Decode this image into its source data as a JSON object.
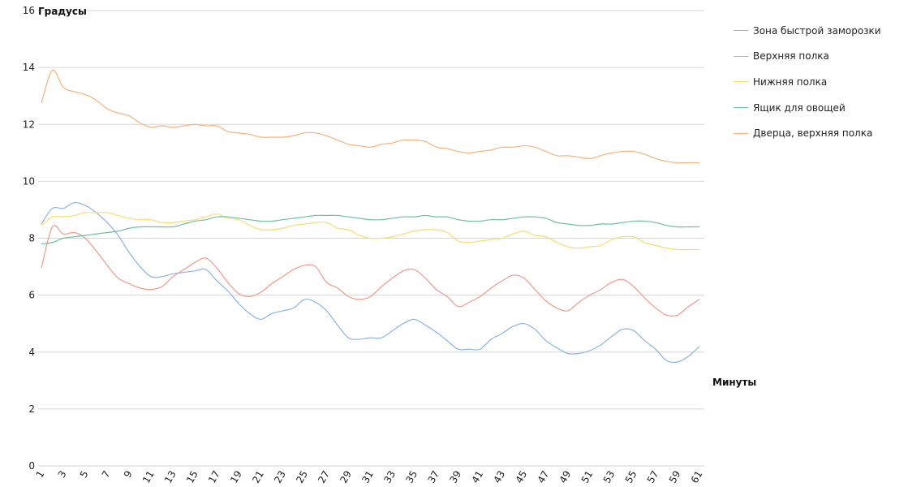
{
  "chart_data": {
    "type": "line",
    "ylabel": "Градусы",
    "xlabel": "Минуты",
    "ylim": [
      0,
      16
    ],
    "yticks": [
      0,
      2,
      4,
      6,
      8,
      10,
      12,
      14,
      16
    ],
    "x": [
      1,
      2,
      3,
      4,
      5,
      6,
      7,
      8,
      9,
      10,
      11,
      12,
      13,
      14,
      15,
      16,
      17,
      18,
      19,
      20,
      21,
      22,
      23,
      24,
      25,
      26,
      27,
      28,
      29,
      30,
      31,
      32,
      33,
      34,
      35,
      36,
      37,
      38,
      39,
      40,
      41,
      42,
      43,
      44,
      45,
      46,
      47,
      48,
      49,
      50,
      51,
      52,
      53,
      54,
      55,
      56,
      57,
      58,
      59,
      60,
      61
    ],
    "xtick_labels": [
      "1",
      "3",
      "5",
      "7",
      "9",
      "11",
      "13",
      "15",
      "17",
      "19",
      "21",
      "23",
      "25",
      "27",
      "29",
      "31",
      "33",
      "35",
      "37",
      "39",
      "41",
      "43",
      "45",
      "47",
      "49",
      "51",
      "53",
      "55",
      "57",
      "59",
      "61"
    ],
    "grid": true,
    "legend_position": "right",
    "series": [
      {
        "name": "Зона быстрой заморозки",
        "color": "#8ab4e8",
        "values": [
          8.5,
          9.05,
          9.05,
          9.25,
          9.15,
          8.9,
          8.55,
          8.1,
          7.5,
          7.0,
          6.65,
          6.65,
          6.75,
          6.8,
          6.85,
          6.9,
          6.5,
          6.15,
          5.7,
          5.35,
          5.15,
          5.35,
          5.45,
          5.55,
          5.85,
          5.75,
          5.45,
          4.95,
          4.5,
          4.45,
          4.5,
          4.5,
          4.75,
          5.0,
          5.15,
          4.95,
          4.7,
          4.4,
          4.1,
          4.1,
          4.1,
          4.45,
          4.65,
          4.9,
          5.0,
          4.8,
          4.4,
          4.15,
          3.95,
          3.95,
          4.05,
          4.25,
          4.55,
          4.8,
          4.75,
          4.4,
          4.1,
          3.7,
          3.65,
          3.85,
          4.2
        ]
      },
      {
        "name": "Верхняя полка",
        "color": "#f09a8a",
        "values": [
          6.95,
          8.4,
          8.15,
          8.2,
          8.0,
          7.55,
          7.05,
          6.6,
          6.4,
          6.25,
          6.2,
          6.3,
          6.65,
          6.9,
          7.15,
          7.3,
          6.95,
          6.45,
          6.05,
          5.95,
          6.1,
          6.4,
          6.65,
          6.9,
          7.05,
          7.0,
          6.45,
          6.25,
          5.95,
          5.85,
          5.95,
          6.3,
          6.6,
          6.85,
          6.9,
          6.6,
          6.2,
          5.95,
          5.6,
          5.75,
          5.95,
          6.25,
          6.5,
          6.7,
          6.6,
          6.2,
          5.8,
          5.55,
          5.45,
          5.75,
          6.0,
          6.2,
          6.45,
          6.55,
          6.3,
          5.9,
          5.55,
          5.3,
          5.3,
          5.6,
          5.85
        ]
      },
      {
        "name": "Нижняя полка",
        "color": "#f8dc70",
        "values": [
          8.45,
          8.75,
          8.75,
          8.8,
          8.9,
          8.9,
          8.9,
          8.8,
          8.7,
          8.65,
          8.65,
          8.55,
          8.55,
          8.6,
          8.65,
          8.75,
          8.85,
          8.7,
          8.65,
          8.45,
          8.3,
          8.3,
          8.35,
          8.45,
          8.5,
          8.55,
          8.55,
          8.35,
          8.3,
          8.1,
          8.0,
          8.0,
          8.05,
          8.15,
          8.25,
          8.3,
          8.3,
          8.2,
          7.9,
          7.85,
          7.9,
          7.95,
          8.0,
          8.15,
          8.25,
          8.1,
          8.05,
          7.85,
          7.7,
          7.65,
          7.7,
          7.75,
          7.95,
          8.05,
          8.05,
          7.85,
          7.75,
          7.65,
          7.6,
          7.6,
          7.6
        ]
      },
      {
        "name": "Ящик для овощей",
        "color": "#6fbf9e",
        "values": [
          7.8,
          7.85,
          8.0,
          8.05,
          8.1,
          8.15,
          8.2,
          8.25,
          8.35,
          8.4,
          8.4,
          8.4,
          8.4,
          8.5,
          8.6,
          8.65,
          8.75,
          8.75,
          8.7,
          8.65,
          8.6,
          8.6,
          8.65,
          8.7,
          8.75,
          8.8,
          8.8,
          8.8,
          8.75,
          8.7,
          8.65,
          8.65,
          8.7,
          8.75,
          8.75,
          8.8,
          8.75,
          8.75,
          8.65,
          8.6,
          8.6,
          8.65,
          8.65,
          8.7,
          8.75,
          8.75,
          8.7,
          8.55,
          8.5,
          8.45,
          8.45,
          8.5,
          8.5,
          8.55,
          8.6,
          8.6,
          8.55,
          8.45,
          8.4,
          8.4,
          8.4
        ]
      },
      {
        "name": "Дверца, верхняя полка",
        "color": "#f6b37a",
        "values": [
          12.75,
          13.9,
          13.3,
          13.15,
          13.05,
          12.85,
          12.55,
          12.4,
          12.3,
          12.05,
          11.9,
          11.95,
          11.9,
          11.95,
          12.0,
          11.95,
          11.95,
          11.75,
          11.7,
          11.65,
          11.55,
          11.55,
          11.55,
          11.6,
          11.7,
          11.7,
          11.6,
          11.45,
          11.3,
          11.25,
          11.2,
          11.3,
          11.35,
          11.45,
          11.45,
          11.4,
          11.2,
          11.15,
          11.05,
          11.0,
          11.05,
          11.1,
          11.2,
          11.2,
          11.25,
          11.2,
          11.05,
          10.9,
          10.9,
          10.85,
          10.8,
          10.9,
          11.0,
          11.05,
          11.05,
          10.95,
          10.8,
          10.7,
          10.65,
          10.65,
          10.65
        ]
      }
    ]
  }
}
